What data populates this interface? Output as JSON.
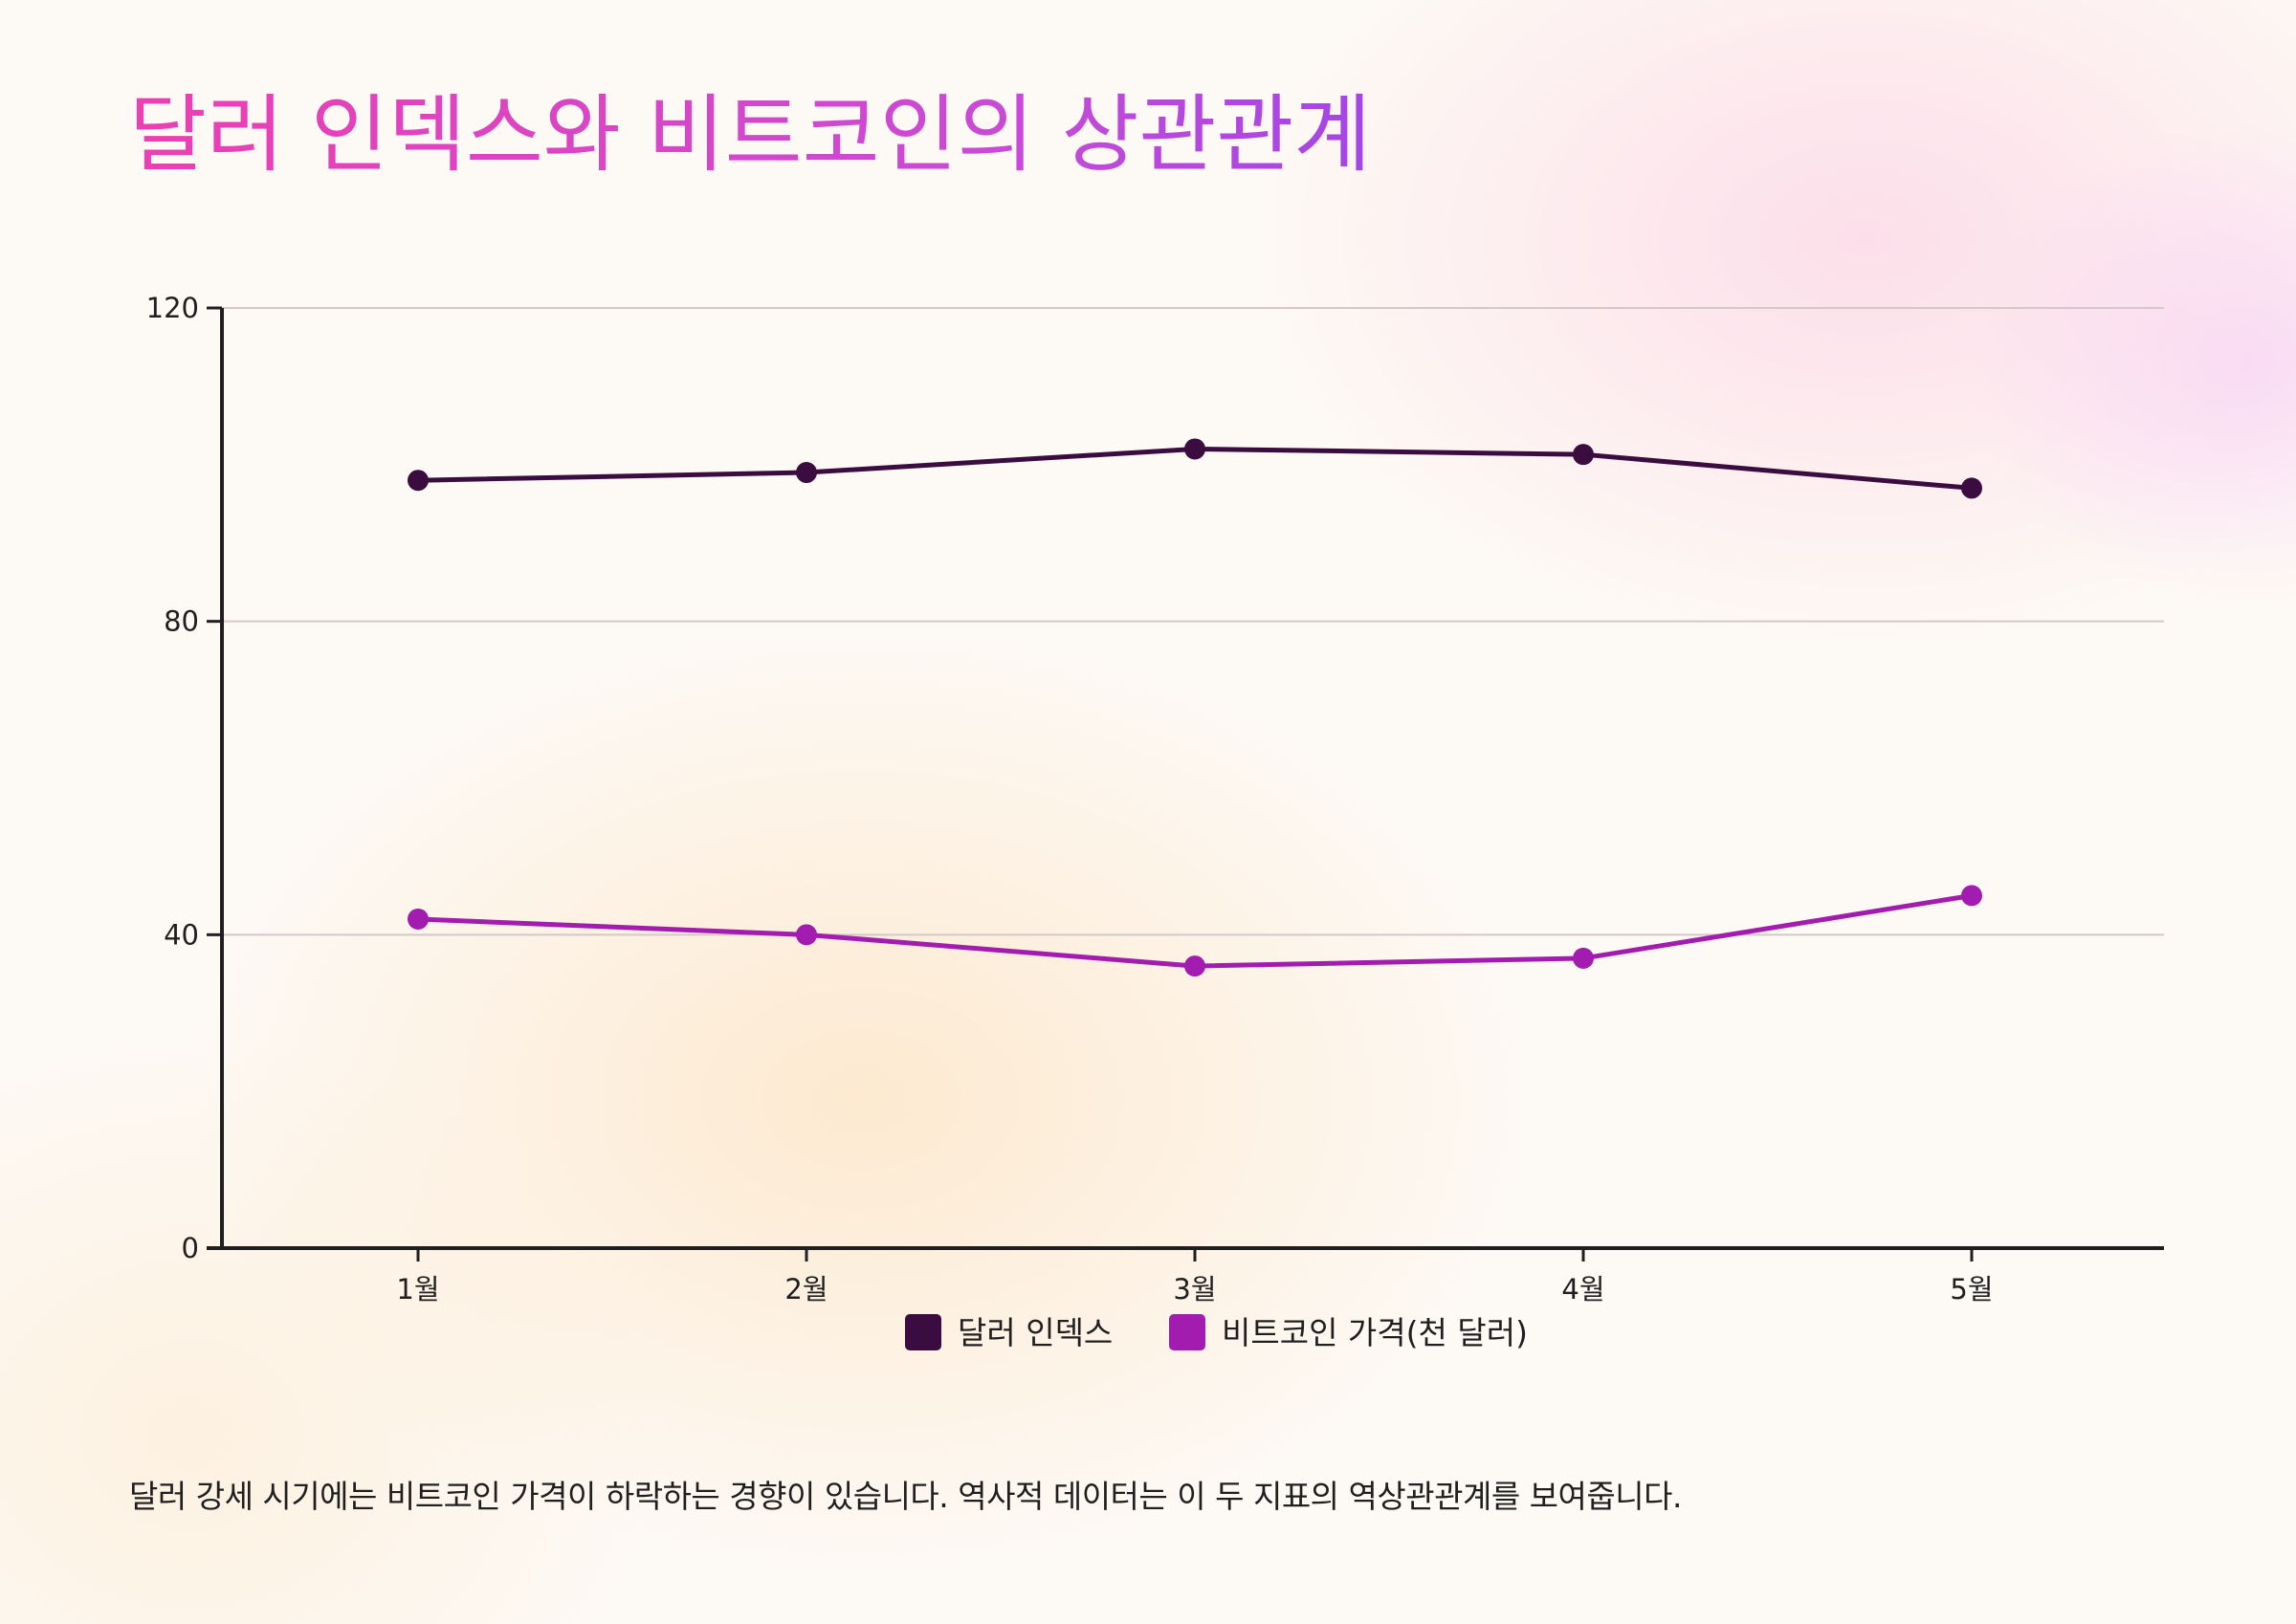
{
  "chart_data": {
    "type": "line",
    "title": "달러 인덱스와 비트코인의 상관관계",
    "categories": [
      "1월",
      "2월",
      "3월",
      "4월",
      "5월"
    ],
    "series": [
      {
        "name": "달러 인덱스",
        "values": [
          98,
          99,
          102,
          101.3,
          97
        ],
        "color": "#3a0c3f"
      },
      {
        "name": "비트코인 가격(천 달러)",
        "values": [
          42,
          40,
          36,
          37,
          45
        ],
        "color": "#a21caf"
      }
    ],
    "y_ticks": [
      0,
      40,
      80,
      120
    ],
    "ylim": [
      0,
      120
    ],
    "xlabel": "",
    "ylabel": "",
    "grid": true,
    "legend_position": "bottom-center",
    "caption": "달러 강세 시기에는 비트코인 가격이 하락하는 경향이 있습니다. 역사적 데이터는 이 두 지표의 역상관관계를 보여줍니다."
  },
  "colors": {
    "title_gradient_start": "#ec3fb3",
    "title_gradient_end": "#a445e6",
    "grid": "#d3c9c9",
    "axis": "#1f1f1f"
  }
}
